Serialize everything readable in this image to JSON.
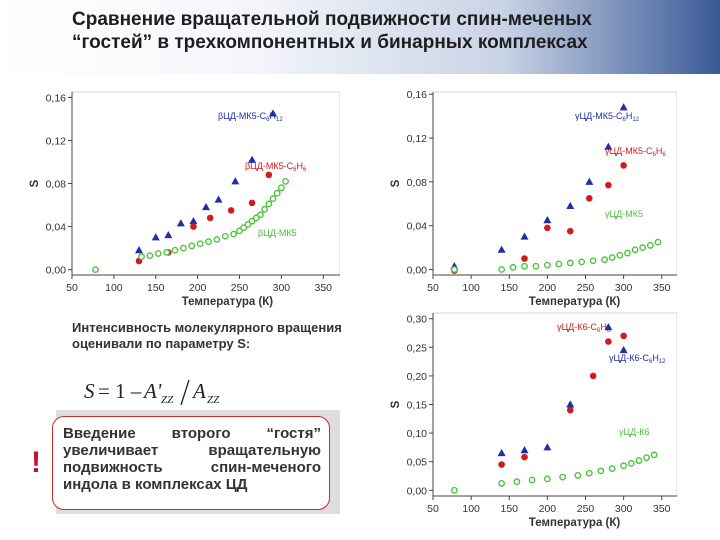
{
  "slide": {
    "title": "Сравнение вращательной подвижности спин-меченых\n“гостей” в трехкомпонентных и бинарных комплексах",
    "description": "Интенсивность молекулярного вращения оценивали по параметру S:",
    "formula": {
      "lhs": "S",
      "rhs_prefix": "= 1 –",
      "numerator": "A'",
      "numerator_sub": "ZZ",
      "denominator": "A",
      "denominator_sub": "ZZ"
    },
    "callout": {
      "mark": "!",
      "text": "Введение второго “гостя” увеличивает вращательную подвижность спин-меченого индола в комплексах ЦД"
    },
    "colors": {
      "blue": "#1f2fa8",
      "red": "#d01c1c",
      "green": "#49c43a",
      "callout_border": "#c92a2a"
    }
  },
  "chart_data": [
    {
      "type": "scatter",
      "xlabel": "Температура (К)",
      "ylabel": "S",
      "xlim": [
        50,
        370
      ],
      "ylim": [
        -0.005,
        0.165
      ],
      "xticks": [
        "50",
        "100",
        "150",
        "200",
        "250",
        "300",
        "350"
      ],
      "yticks": [
        "0,00",
        "0,04",
        "0,08",
        "0,12",
        "0,16"
      ],
      "series": [
        {
          "name": "βЦД-МК5-C6H12",
          "name_main": "βЦД-МК5-C",
          "name_sub1": "6",
          "name_mid": "H",
          "name_sub2": "12",
          "color": "#1f2fa8",
          "marker": "triangle",
          "x": [
            130,
            150,
            165,
            180,
            195,
            210,
            225,
            245,
            265,
            290
          ],
          "y": [
            0.018,
            0.03,
            0.032,
            0.043,
            0.045,
            0.058,
            0.065,
            0.082,
            0.102,
            0.145
          ]
        },
        {
          "name": "βЦД-МК5-C6H6",
          "name_main": "βЦД-МК5-C",
          "name_sub1": "6",
          "name_mid": "H",
          "name_sub2": "6",
          "color": "#d01c1c",
          "marker": "circle",
          "x": [
            130,
            165,
            195,
            215,
            240,
            265,
            285
          ],
          "y": [
            0.008,
            0.016,
            0.04,
            0.048,
            0.055,
            0.062,
            0.088
          ]
        },
        {
          "name": "βЦД-МК5",
          "name_main": "βЦД-МК5",
          "color": "#49c43a",
          "marker": "open-circle",
          "x": [
            78,
            133,
            143,
            153,
            163,
            173,
            183,
            193,
            203,
            213,
            223,
            233,
            243,
            250,
            255,
            260,
            265,
            270,
            275,
            280,
            285,
            290,
            295,
            300,
            305
          ],
          "y": [
            0.0,
            0.012,
            0.013,
            0.015,
            0.016,
            0.018,
            0.02,
            0.022,
            0.024,
            0.026,
            0.028,
            0.031,
            0.033,
            0.036,
            0.039,
            0.042,
            0.045,
            0.048,
            0.051,
            0.056,
            0.061,
            0.066,
            0.071,
            0.076,
            0.082
          ]
        }
      ]
    },
    {
      "type": "scatter",
      "xlabel": "Температура (К)",
      "ylabel": "S",
      "xlim": [
        50,
        370
      ],
      "ylim": [
        -0.005,
        0.162
      ],
      "xticks": [
        "50",
        "100",
        "150",
        "200",
        "250",
        "300",
        "350"
      ],
      "yticks": [
        "0,00",
        "0,04",
        "0,08",
        "0,12",
        "0,16"
      ],
      "series": [
        {
          "name": "γЦД-МК5-C6H12",
          "name_main": "γЦД-МК5-C",
          "name_sub1": "6",
          "name_mid": "H",
          "name_sub2": "12",
          "color": "#1f2fa8",
          "marker": "triangle",
          "x": [
            78,
            140,
            170,
            200,
            230,
            255,
            280,
            300
          ],
          "y": [
            0.003,
            0.018,
            0.03,
            0.045,
            0.058,
            0.08,
            0.112,
            0.148
          ]
        },
        {
          "name": "γЦД-МК5-C6H6",
          "name_main": "γЦД-МК5-C",
          "name_sub1": "6",
          "name_mid": "H",
          "name_sub2": "6",
          "color": "#d01c1c",
          "marker": "circle",
          "x": [
            78,
            170,
            200,
            230,
            255,
            280,
            300
          ],
          "y": [
            -0.001,
            0.01,
            0.038,
            0.035,
            0.065,
            0.077,
            0.095
          ]
        },
        {
          "name": "γЦД-МК5",
          "name_main": "γЦД-МК5",
          "color": "#49c43a",
          "marker": "open-circle",
          "x": [
            78,
            140,
            155,
            170,
            185,
            200,
            215,
            230,
            245,
            260,
            275,
            285,
            295,
            305,
            315,
            325,
            335,
            345
          ],
          "y": [
            0.0,
            0.0,
            0.002,
            0.003,
            0.003,
            0.004,
            0.005,
            0.006,
            0.007,
            0.008,
            0.009,
            0.011,
            0.013,
            0.015,
            0.018,
            0.02,
            0.022,
            0.025
          ]
        }
      ]
    },
    {
      "type": "scatter",
      "xlabel": "Температура (К)",
      "ylabel": "S",
      "xlim": [
        50,
        370
      ],
      "ylim": [
        -0.01,
        0.31
      ],
      "xticks": [
        "50",
        "100",
        "150",
        "200",
        "250",
        "300",
        "350"
      ],
      "yticks": [
        "0,00",
        "0,05",
        "0,10",
        "0,15",
        "0,20",
        "0,25",
        "0,30"
      ],
      "series": [
        {
          "name": "γЦД-К6-C6H6",
          "name_main": "γЦД-К6-C",
          "name_sub1": "6",
          "name_mid": "H",
          "name_sub2": "6",
          "color": "#d01c1c",
          "marker": "circle",
          "x": [
            140,
            170,
            230,
            260,
            280,
            300
          ],
          "y": [
            0.045,
            0.058,
            0.14,
            0.2,
            0.26,
            0.27
          ]
        },
        {
          "name": "γЦД-К6-C6H12",
          "name_main": "γЦД-К6-C",
          "name_sub1": "6",
          "name_mid": "H",
          "name_sub2": "12",
          "color": "#1f2fa8",
          "marker": "triangle",
          "x": [
            140,
            170,
            200,
            230,
            280,
            300
          ],
          "y": [
            0.065,
            0.07,
            0.075,
            0.15,
            0.285,
            0.245
          ]
        },
        {
          "name": "γЦД-К6",
          "name_main": "γЦД-К6",
          "color": "#49c43a",
          "marker": "open-circle",
          "x": [
            78,
            140,
            160,
            180,
            200,
            220,
            240,
            255,
            270,
            285,
            300,
            310,
            320,
            330,
            340
          ],
          "y": [
            0.0,
            0.012,
            0.015,
            0.018,
            0.02,
            0.023,
            0.026,
            0.03,
            0.034,
            0.038,
            0.043,
            0.047,
            0.052,
            0.057,
            0.062
          ]
        }
      ]
    }
  ]
}
